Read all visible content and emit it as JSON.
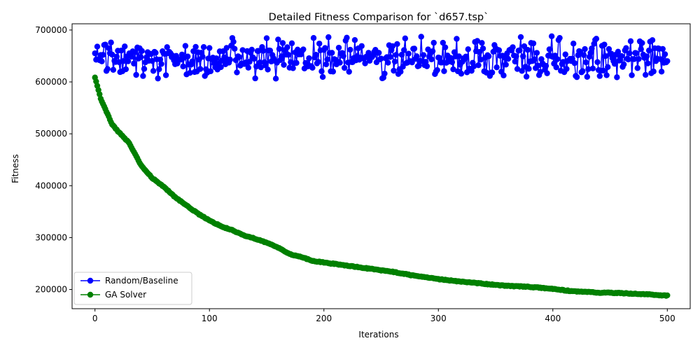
{
  "chart_data": {
    "type": "line",
    "title": "Detailed Fitness Comparison for `d657.tsp`",
    "xlabel": "Iterations",
    "ylabel": "Fitness",
    "xlim": [
      -20,
      520
    ],
    "ylim": [
      163000,
      712000
    ],
    "xticks": [
      0,
      100,
      200,
      300,
      400,
      500
    ],
    "yticks": [
      200000,
      300000,
      400000,
      500000,
      600000,
      700000
    ],
    "grid": false,
    "legend_position": "lower-left",
    "series": [
      {
        "name": "Random/Baseline",
        "color": "#0000ff",
        "mode": "noise",
        "x_start": 0,
        "x_end": 500,
        "mean": 647000,
        "min": 606000,
        "max": 688000
      },
      {
        "name": "GA Solver",
        "color": "#008000",
        "mode": "curve",
        "x_start": 0,
        "x_end": 500,
        "points": [
          [
            0,
            609000
          ],
          [
            5,
            568000
          ],
          [
            10,
            543000
          ],
          [
            15,
            518000
          ],
          [
            20,
            505000
          ],
          [
            30,
            482000
          ],
          [
            40,
            440000
          ],
          [
            50,
            415000
          ],
          [
            60,
            398000
          ],
          [
            70,
            378000
          ],
          [
            80,
            362000
          ],
          [
            90,
            346000
          ],
          [
            100,
            333000
          ],
          [
            110,
            322000
          ],
          [
            120,
            314000
          ],
          [
            130,
            304000
          ],
          [
            140,
            298000
          ],
          [
            150,
            290000
          ],
          [
            160,
            281000
          ],
          [
            170,
            268000
          ],
          [
            180,
            263000
          ],
          [
            190,
            255000
          ],
          [
            200,
            252000
          ],
          [
            220,
            246000
          ],
          [
            240,
            240000
          ],
          [
            260,
            234000
          ],
          [
            280,
            226000
          ],
          [
            300,
            220000
          ],
          [
            320,
            215000
          ],
          [
            340,
            211000
          ],
          [
            360,
            207000
          ],
          [
            380,
            205000
          ],
          [
            400,
            201000
          ],
          [
            420,
            196000
          ],
          [
            440,
            194000
          ],
          [
            460,
            193000
          ],
          [
            480,
            191000
          ],
          [
            500,
            188000
          ]
        ]
      }
    ]
  }
}
